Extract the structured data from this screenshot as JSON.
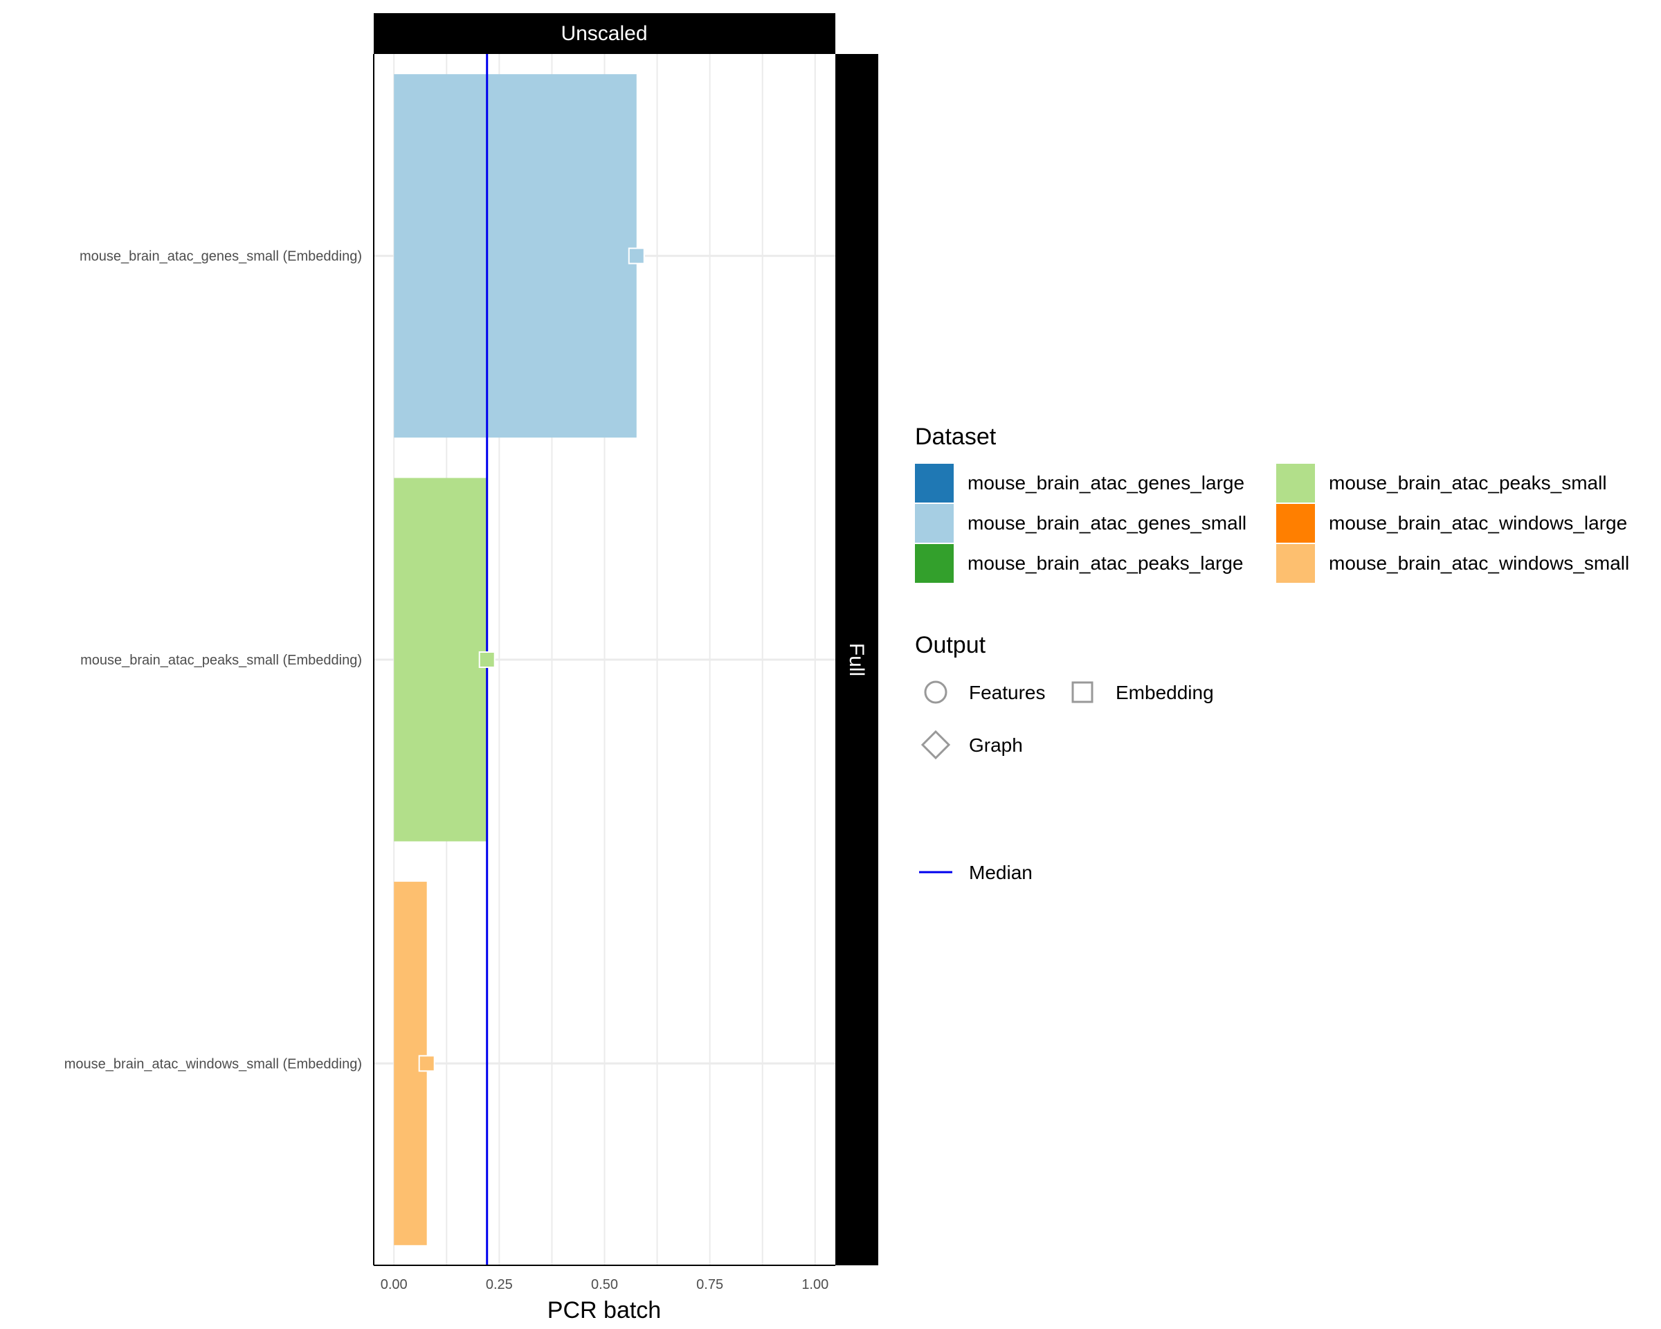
{
  "chart_data": {
    "type": "bar",
    "facet_top": "Unscaled",
    "facet_right": "Full",
    "xlabel": "PCR batch",
    "ylabel": "",
    "xlim": [
      -0.048,
      1.048
    ],
    "xticks": [
      0,
      0.25,
      0.5,
      0.75,
      1.0
    ],
    "xtick_labels": [
      "0.00",
      "0.25",
      "0.50",
      "0.75",
      "1.00"
    ],
    "grid": true,
    "orientation": "horizontal",
    "categories": [
      "mouse_brain_atac_genes_small (Embedding)",
      "mouse_brain_atac_peaks_small (Embedding)",
      "mouse_brain_atac_windows_small (Embedding)"
    ],
    "values": [
      0.576,
      0.221,
      0.078
    ],
    "bar_colors": [
      "#a6cee3",
      "#b2df8a",
      "#fdbf6f"
    ],
    "point_shape": "square",
    "median": 0.221,
    "median_color": "#0000ee"
  },
  "legend": {
    "dataset_title": "Dataset",
    "datasets": [
      {
        "label": "mouse_brain_atac_genes_large",
        "color": "#1f78b4"
      },
      {
        "label": "mouse_brain_atac_genes_small",
        "color": "#a6cee3"
      },
      {
        "label": "mouse_brain_atac_peaks_large",
        "color": "#33a02c"
      },
      {
        "label": "mouse_brain_atac_peaks_small",
        "color": "#b2df8a"
      },
      {
        "label": "mouse_brain_atac_windows_large",
        "color": "#ff7f00"
      },
      {
        "label": "mouse_brain_atac_windows_small",
        "color": "#fdbf6f"
      }
    ],
    "output_title": "Output",
    "outputs": [
      {
        "label": "Features",
        "shape": "circle"
      },
      {
        "label": "Embedding",
        "shape": "square"
      },
      {
        "label": "Graph",
        "shape": "diamond"
      }
    ],
    "median_label": "Median"
  }
}
